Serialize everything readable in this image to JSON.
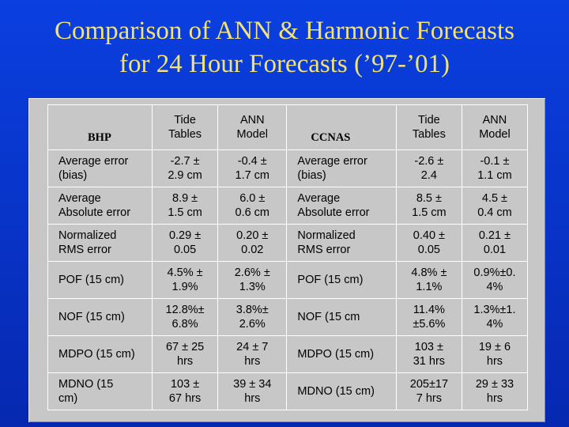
{
  "title_line1": "Comparison of ANN & Harmonic Forecasts",
  "title_line2": "for 24 Hour Forecasts (’97-’01)",
  "left_station": "BHP",
  "right_station": "CCNAS",
  "col_tide": "Tide\nTables",
  "col_ann": "ANN\nModel",
  "rows": [
    {
      "left_label": "Average  error\n(bias)",
      "left_tide": "-2.7 ±\n2.9 cm",
      "left_ann": "-0.4 ±\n1.7 cm",
      "right_label": "Average    error\n(bias)",
      "right_tide": "-2.6 ±\n2.4",
      "right_ann": "-0.1 ±\n1.1 cm"
    },
    {
      "left_label": "Average\nAbsolute error",
      "left_tide": "8.9 ±\n1.5 cm",
      "left_ann": "6.0 ±\n0.6 cm",
      "right_label": "Average\nAbsolute error",
      "right_tide": "8.5 ±\n1.5 cm",
      "right_ann": "4.5 ±\n0.4 cm"
    },
    {
      "left_label": "Normalized\nRMS error",
      "left_tide": "0.29 ±\n0.05",
      "left_ann": "0.20 ±\n0.02",
      "right_label": "Normalized\nRMS error",
      "right_tide": "0.40 ±\n0.05",
      "right_ann": "0.21 ±\n0.01"
    },
    {
      "left_label": "POF (15 cm)",
      "left_tide": "4.5% ±\n1.9%",
      "left_ann": "2.6% ±\n1.3%",
      "right_label": "POF (15 cm)",
      "right_tide": "4.8% ±\n1.1%",
      "right_ann": "0.9%±0.\n4%"
    },
    {
      "left_label": "NOF (15 cm)",
      "left_tide": "12.8%±\n6.8%",
      "left_ann": "3.8%±\n2.6%",
      "right_label": "NOF (15 cm",
      "right_tide": "11.4%\n±5.6%",
      "right_ann": "1.3%±1.\n4%"
    },
    {
      "left_label": "MDPO (15 cm)",
      "left_tide": "67 ± 25\nhrs",
      "left_ann": "24 ± 7\nhrs",
      "right_label": "MDPO (15 cm)",
      "right_tide": "103 ±\n31 hrs",
      "right_ann": "19 ± 6\nhrs"
    },
    {
      "left_label": "MDNO       (15\ncm)",
      "left_tide": "103 ±\n67 hrs",
      "left_ann": "39 ± 34\nhrs",
      "right_label": "MDNO (15 cm)",
      "right_tide": "205±17\n7 hrs",
      "right_ann": "29 ± 33\nhrs"
    }
  ]
}
